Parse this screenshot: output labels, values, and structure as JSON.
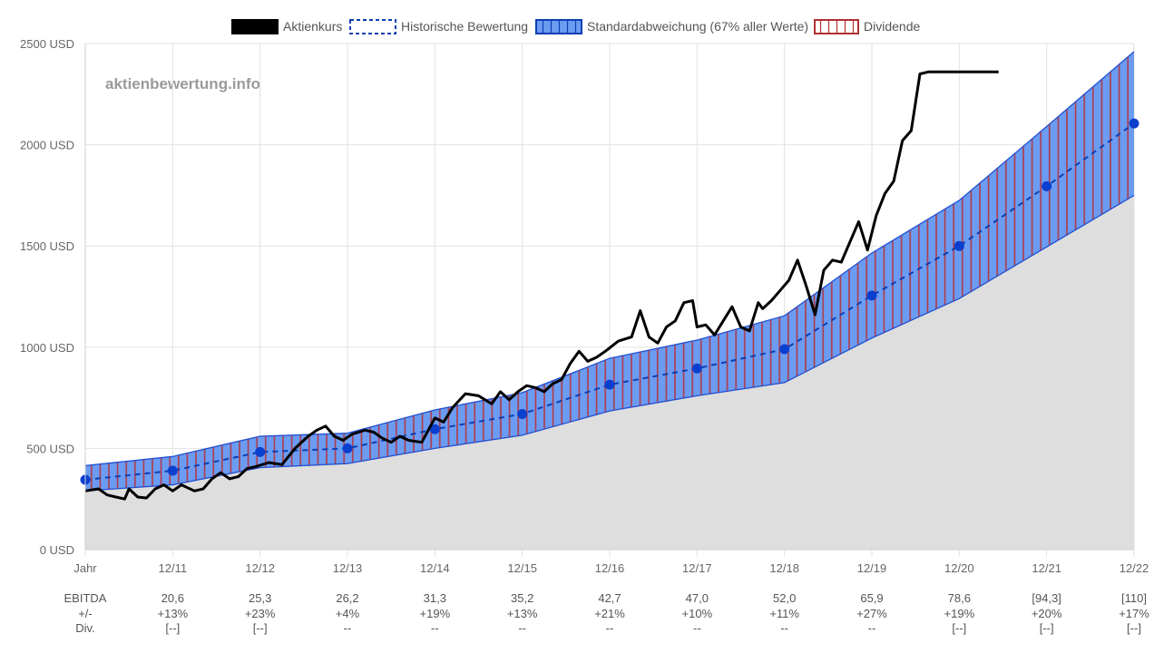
{
  "watermark": "aktienbewertung.info",
  "chart_data": {
    "type": "line",
    "legend_position": "top",
    "legend": [
      {
        "key": "price",
        "label": "Aktienkurs",
        "color": "#000000"
      },
      {
        "key": "fair",
        "label": "Historische Bewertung",
        "color": "#0b3fb3"
      },
      {
        "key": "band",
        "label": "Standardabweichung (67% aller Werte)",
        "color": "#6c9cf2"
      },
      {
        "key": "dividend",
        "label": "Dividende",
        "color": "#b03030"
      }
    ],
    "y_unit": "USD",
    "ylim": [
      0,
      2500
    ],
    "y_ticks": [
      "0 USD",
      "500 USD",
      "1000 USD",
      "1500 USD",
      "2000 USD",
      "2500 USD"
    ],
    "y_tick_values": [
      0,
      500,
      1000,
      1500,
      2000,
      2500
    ],
    "grid": true,
    "xlim": [
      2010,
      2022
    ],
    "x_tick_labels": [
      "Jahr",
      "12/11",
      "12/12",
      "12/13",
      "12/14",
      "12/15",
      "12/16",
      "12/17",
      "12/18",
      "12/19",
      "12/20",
      "12/21",
      "12/22"
    ],
    "historical_valuation": {
      "x": [
        2010,
        2011,
        2012,
        2013,
        2014,
        2015,
        2016,
        2017,
        2018,
        2019,
        2020,
        2021,
        2022
      ],
      "y": [
        345,
        390,
        482,
        500,
        595,
        670,
        815,
        895,
        990,
        1255,
        1500,
        1795,
        2105
      ]
    },
    "std_band": {
      "x": [
        2010,
        2011,
        2012,
        2013,
        2014,
        2015,
        2016,
        2017,
        2018,
        2019,
        2020,
        2021,
        2022
      ],
      "upper": [
        415,
        460,
        560,
        575,
        690,
        775,
        945,
        1035,
        1155,
        1465,
        1725,
        2090,
        2460
      ],
      "lower": [
        290,
        320,
        405,
        425,
        500,
        565,
        685,
        760,
        825,
        1045,
        1240,
        1495,
        1750
      ]
    },
    "stock_price": {
      "x": [
        2010.0,
        2010.15,
        2010.25,
        2010.35,
        2010.45,
        2010.5,
        2010.6,
        2010.7,
        2010.8,
        2010.9,
        2011.0,
        2011.1,
        2011.25,
        2011.35,
        2011.45,
        2011.55,
        2011.65,
        2011.75,
        2011.85,
        2011.95,
        2012.1,
        2012.25,
        2012.4,
        2012.55,
        2012.65,
        2012.75,
        2012.85,
        2012.95,
        2013.05,
        2013.2,
        2013.3,
        2013.4,
        2013.5,
        2013.6,
        2013.7,
        2013.85,
        2014.0,
        2014.1,
        2014.2,
        2014.35,
        2014.5,
        2014.65,
        2014.75,
        2014.85,
        2014.95,
        2015.05,
        2015.15,
        2015.25,
        2015.35,
        2015.45,
        2015.55,
        2015.65,
        2015.75,
        2015.85,
        2015.95,
        2016.1,
        2016.25,
        2016.35,
        2016.45,
        2016.55,
        2016.65,
        2016.75,
        2016.85,
        2016.95,
        2017.0,
        2017.1,
        2017.2,
        2017.3,
        2017.4,
        2017.5,
        2017.6,
        2017.7,
        2017.75,
        2017.85,
        2017.95,
        2018.05,
        2018.15,
        2018.25,
        2018.35,
        2018.45,
        2018.55,
        2018.65,
        2018.75,
        2018.85,
        2018.95,
        2019.05,
        2019.15,
        2019.25,
        2019.35,
        2019.45,
        2019.55,
        2019.65,
        2019.75,
        2019.85,
        2019.95,
        2020.0,
        2020.1,
        2020.2,
        2020.3,
        2020.4,
        2020.45
      ],
      "y": [
        290,
        300,
        270,
        260,
        250,
        300,
        260,
        255,
        300,
        320,
        290,
        320,
        290,
        300,
        350,
        380,
        350,
        360,
        400,
        410,
        430,
        420,
        500,
        560,
        590,
        610,
        560,
        540,
        570,
        590,
        580,
        550,
        530,
        560,
        540,
        530,
        650,
        630,
        700,
        770,
        760,
        720,
        780,
        740,
        780,
        810,
        800,
        780,
        820,
        840,
        920,
        980,
        930,
        950,
        980,
        1030,
        1050,
        1180,
        1050,
        1020,
        1100,
        1130,
        1220,
        1230,
        1100,
        1110,
        1060,
        1130,
        1200,
        1100,
        1080,
        1220,
        1190,
        1230,
        1280,
        1330,
        1430,
        1300,
        1160,
        1380,
        1430,
        1420,
        1520,
        1620,
        1480,
        1650,
        1760,
        1820,
        2020,
        2070,
        2350,
        2360,
        2360,
        2360,
        2360,
        2360,
        2360,
        2360,
        2360,
        2360,
        2360
      ]
    },
    "table": {
      "rows": [
        {
          "label": "EBITDA",
          "values": [
            "20,6",
            "25,3",
            "26,2",
            "31,3",
            "35,2",
            "42,7",
            "47,0",
            "52,0",
            "65,9",
            "78,6",
            "[94,3]",
            "[110]"
          ]
        },
        {
          "label": "+/-",
          "values": [
            "+13%",
            "+23%",
            "+4%",
            "+19%",
            "+13%",
            "+21%",
            "+10%",
            "+11%",
            "+27%",
            "+19%",
            "+20%",
            "+17%"
          ]
        },
        {
          "label": "Div.",
          "values": [
            "[--]",
            "[--]",
            "--",
            "--",
            "--",
            "--",
            "--",
            "--",
            "--",
            "[--]",
            "[--]",
            "[--]"
          ]
        }
      ]
    }
  }
}
